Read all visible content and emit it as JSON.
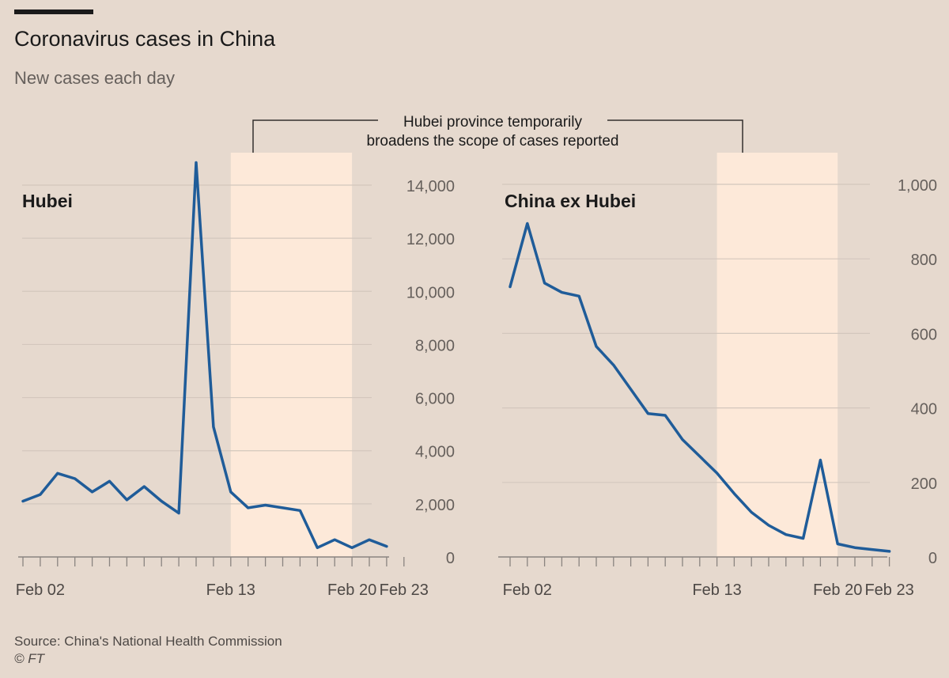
{
  "title": "Coronavirus cases in China",
  "subtitle": "New cases each day",
  "annotation": {
    "line1": "Hubei province temporarily",
    "line2": "broadens the scope of cases reported"
  },
  "source": "Source: China's National Health Commission",
  "credit": "© FT",
  "colors": {
    "background": "#e6d9ce",
    "line": "#1f5c99",
    "highlight": "#fde9d9",
    "grid": "#d3c7bd",
    "axis": "#33302e"
  },
  "chart_data": [
    {
      "type": "line",
      "title": "Hubei",
      "x": [
        "Feb 01",
        "Feb 02",
        "Feb 03",
        "Feb 04",
        "Feb 05",
        "Feb 06",
        "Feb 07",
        "Feb 08",
        "Feb 09",
        "Feb 10",
        "Feb 11",
        "Feb 12",
        "Feb 13",
        "Feb 14",
        "Feb 15",
        "Feb 16",
        "Feb 17",
        "Feb 18",
        "Feb 19",
        "Feb 20",
        "Feb 21",
        "Feb 22",
        "Feb 23"
      ],
      "values": [
        2100,
        2350,
        3150,
        2950,
        2450,
        2850,
        2150,
        2650,
        2100,
        1650,
        14850,
        4900,
        2450,
        1850,
        1950,
        1850,
        1750,
        350,
        650,
        350,
        650,
        400,
        null
      ],
      "x_ticks": [
        "Feb 02",
        "Feb 13",
        "Feb 20",
        "Feb 23"
      ],
      "y_ticks": [
        "0",
        "2,000",
        "4,000",
        "6,000",
        "8,000",
        "10,000",
        "12,000",
        "14,000"
      ],
      "ylim": [
        0,
        15000
      ],
      "highlight_range": [
        "Feb 13",
        "Feb 20"
      ],
      "grid": true
    },
    {
      "type": "line",
      "title": "China ex Hubei",
      "x": [
        "Feb 01",
        "Feb 02",
        "Feb 03",
        "Feb 04",
        "Feb 05",
        "Feb 06",
        "Feb 07",
        "Feb 08",
        "Feb 09",
        "Feb 10",
        "Feb 11",
        "Feb 12",
        "Feb 13",
        "Feb 14",
        "Feb 15",
        "Feb 16",
        "Feb 17",
        "Feb 18",
        "Feb 19",
        "Feb 20",
        "Feb 21",
        "Feb 22",
        "Feb 23"
      ],
      "values": [
        725,
        895,
        735,
        710,
        700,
        565,
        515,
        450,
        385,
        380,
        315,
        270,
        225,
        170,
        120,
        85,
        60,
        50,
        260,
        35,
        25,
        20,
        15
      ],
      "x_ticks": [
        "Feb 02",
        "Feb 13",
        "Feb 20",
        "Feb 23"
      ],
      "y_ticks": [
        "0",
        "200",
        "400",
        "600",
        "800",
        "1,000"
      ],
      "ylim": [
        0,
        1000
      ],
      "highlight_range": [
        "Feb 13",
        "Feb 20"
      ],
      "grid": true
    }
  ]
}
